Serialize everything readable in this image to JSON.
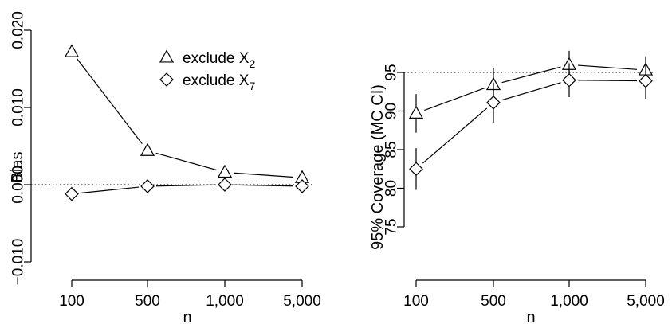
{
  "chart_data": [
    {
      "type": "line",
      "x": [
        "100",
        "500",
        "1,000",
        "5,000"
      ],
      "xlabel": "n",
      "ylabel": "Bias",
      "ylim": [
        -0.01,
        0.02
      ],
      "yticks": [
        "−0.010",
        "0.000",
        "0.010",
        "0.020"
      ],
      "reference_line": 0.0,
      "series": [
        {
          "name": "exclude X2",
          "marker": "triangle",
          "values": [
            0.0172,
            0.0044,
            0.0016,
            0.0009
          ]
        },
        {
          "name": "exclude X7",
          "marker": "diamond",
          "values": [
            -0.0012,
            -0.0002,
            0.0,
            -0.0002
          ]
        }
      ],
      "legend": {
        "position": "top-right",
        "entries": [
          {
            "base": "exclude X",
            "sub": "2",
            "marker": "triangle"
          },
          {
            "base": "exclude X",
            "sub": "7",
            "marker": "diamond"
          }
        ]
      }
    },
    {
      "type": "line",
      "x": [
        "100",
        "500",
        "1,000",
        "5,000"
      ],
      "xlabel": "n",
      "ylabel": "95% Coverage (MC CI)",
      "ylim": [
        75,
        95
      ],
      "yticks": [
        "75",
        "80",
        "85",
        "90",
        "95"
      ],
      "reference_line": 95,
      "series": [
        {
          "name": "exclude X2",
          "marker": "triangle",
          "values": [
            89.7,
            93.4,
            96.0,
            95.3
          ],
          "ci_low": [
            87.2,
            91.2,
            94.2,
            93.5
          ],
          "ci_high": [
            92.2,
            95.6,
            97.8,
            97.1
          ]
        },
        {
          "name": "exclude X7",
          "marker": "diamond",
          "values": [
            82.5,
            91.1,
            94.0,
            93.9
          ],
          "ci_low": [
            79.8,
            88.5,
            91.8,
            91.6
          ],
          "ci_high": [
            85.2,
            93.7,
            96.2,
            96.2
          ]
        }
      ]
    }
  ]
}
